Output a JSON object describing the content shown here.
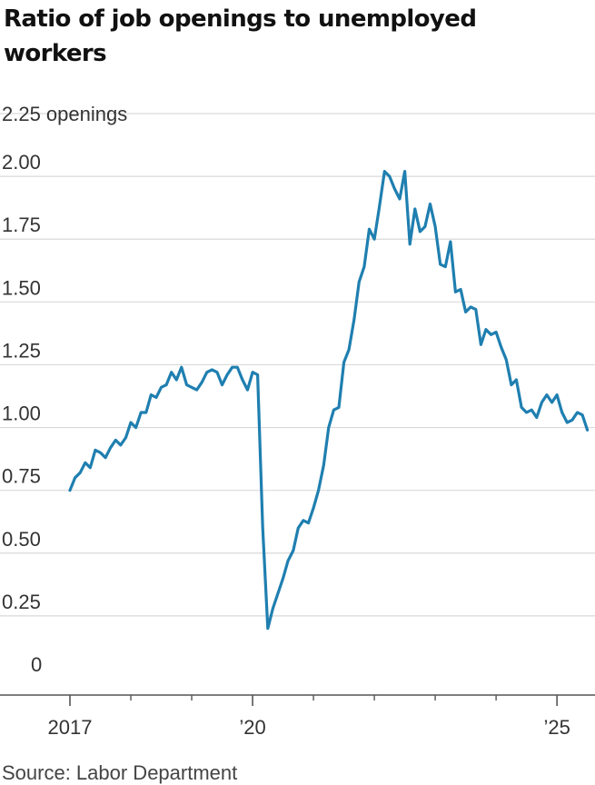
{
  "chart_data": {
    "type": "line",
    "title": "Ratio of job openings to unemployed workers",
    "y_unit_label": "2.25 openings",
    "y_ticks": [
      "0",
      "0.25",
      "0.50",
      "0.75",
      "1.00",
      "1.25",
      "1.50",
      "1.75",
      "2.00"
    ],
    "y_tick_values": [
      0,
      0.25,
      0.5,
      0.75,
      1.0,
      1.25,
      1.5,
      1.75,
      2.0
    ],
    "ylim": [
      0,
      2.25
    ],
    "x_tick_labels": [
      "2017",
      "’20",
      "’25"
    ],
    "x_tick_label_values": [
      2017,
      2020,
      2025
    ],
    "x_minor_ticks": [
      2018,
      2019,
      2021,
      2022,
      2023,
      2024
    ],
    "xlim": [
      2017,
      2025.55
    ],
    "grid": true,
    "line_color": "#1f7fb0",
    "series": [
      {
        "x": [
          2017.0,
          2017.083,
          2017.167,
          2017.25,
          2017.333,
          2017.417,
          2017.5,
          2017.583,
          2017.667,
          2017.75,
          2017.833,
          2017.917,
          2018.0,
          2018.083,
          2018.167,
          2018.25,
          2018.333,
          2018.417,
          2018.5,
          2018.583,
          2018.667,
          2018.75,
          2018.833,
          2018.917,
          2019.0,
          2019.083,
          2019.167,
          2019.25,
          2019.333,
          2019.417,
          2019.5,
          2019.583,
          2019.667,
          2019.75,
          2019.833,
          2019.917,
          2020.0,
          2020.083,
          2020.167,
          2020.25,
          2020.333,
          2020.417,
          2020.5,
          2020.583,
          2020.667,
          2020.75,
          2020.833,
          2020.917,
          2021.0,
          2021.083,
          2021.167,
          2021.25,
          2021.333,
          2021.417,
          2021.5,
          2021.583,
          2021.667,
          2021.75,
          2021.833,
          2021.917,
          2022.0,
          2022.083,
          2022.167,
          2022.25,
          2022.333,
          2022.417,
          2022.5,
          2022.583,
          2022.667,
          2022.75,
          2022.833,
          2022.917,
          2023.0,
          2023.083,
          2023.167,
          2023.25,
          2023.333,
          2023.417,
          2023.5,
          2023.583,
          2023.667,
          2023.75,
          2023.833,
          2023.917,
          2024.0,
          2024.083,
          2024.167,
          2024.25,
          2024.333,
          2024.417,
          2024.5,
          2024.583,
          2024.667,
          2024.75,
          2024.833,
          2024.917,
          2025.0,
          2025.083,
          2025.167,
          2025.25,
          2025.333,
          2025.417,
          2025.5
        ],
        "values": [
          0.75,
          0.8,
          0.82,
          0.86,
          0.84,
          0.91,
          0.9,
          0.88,
          0.92,
          0.95,
          0.93,
          0.96,
          1.02,
          1.0,
          1.06,
          1.06,
          1.13,
          1.12,
          1.16,
          1.17,
          1.22,
          1.19,
          1.24,
          1.17,
          1.16,
          1.15,
          1.18,
          1.22,
          1.23,
          1.22,
          1.17,
          1.21,
          1.24,
          1.24,
          1.19,
          1.15,
          1.22,
          1.21,
          0.6,
          0.2,
          0.28,
          0.34,
          0.4,
          0.47,
          0.51,
          0.6,
          0.63,
          0.62,
          0.68,
          0.75,
          0.85,
          1.0,
          1.07,
          1.08,
          1.26,
          1.31,
          1.43,
          1.58,
          1.64,
          1.79,
          1.75,
          1.88,
          2.02,
          2.0,
          1.95,
          1.91,
          2.02,
          1.73,
          1.87,
          1.78,
          1.8,
          1.89,
          1.8,
          1.65,
          1.64,
          1.74,
          1.54,
          1.55,
          1.46,
          1.48,
          1.47,
          1.33,
          1.39,
          1.37,
          1.38,
          1.32,
          1.27,
          1.17,
          1.19,
          1.08,
          1.06,
          1.07,
          1.04,
          1.1,
          1.13,
          1.1,
          1.13,
          1.06,
          1.02,
          1.03,
          1.06,
          1.05,
          0.99
        ]
      }
    ]
  },
  "source_text": "Source: Labor Department"
}
